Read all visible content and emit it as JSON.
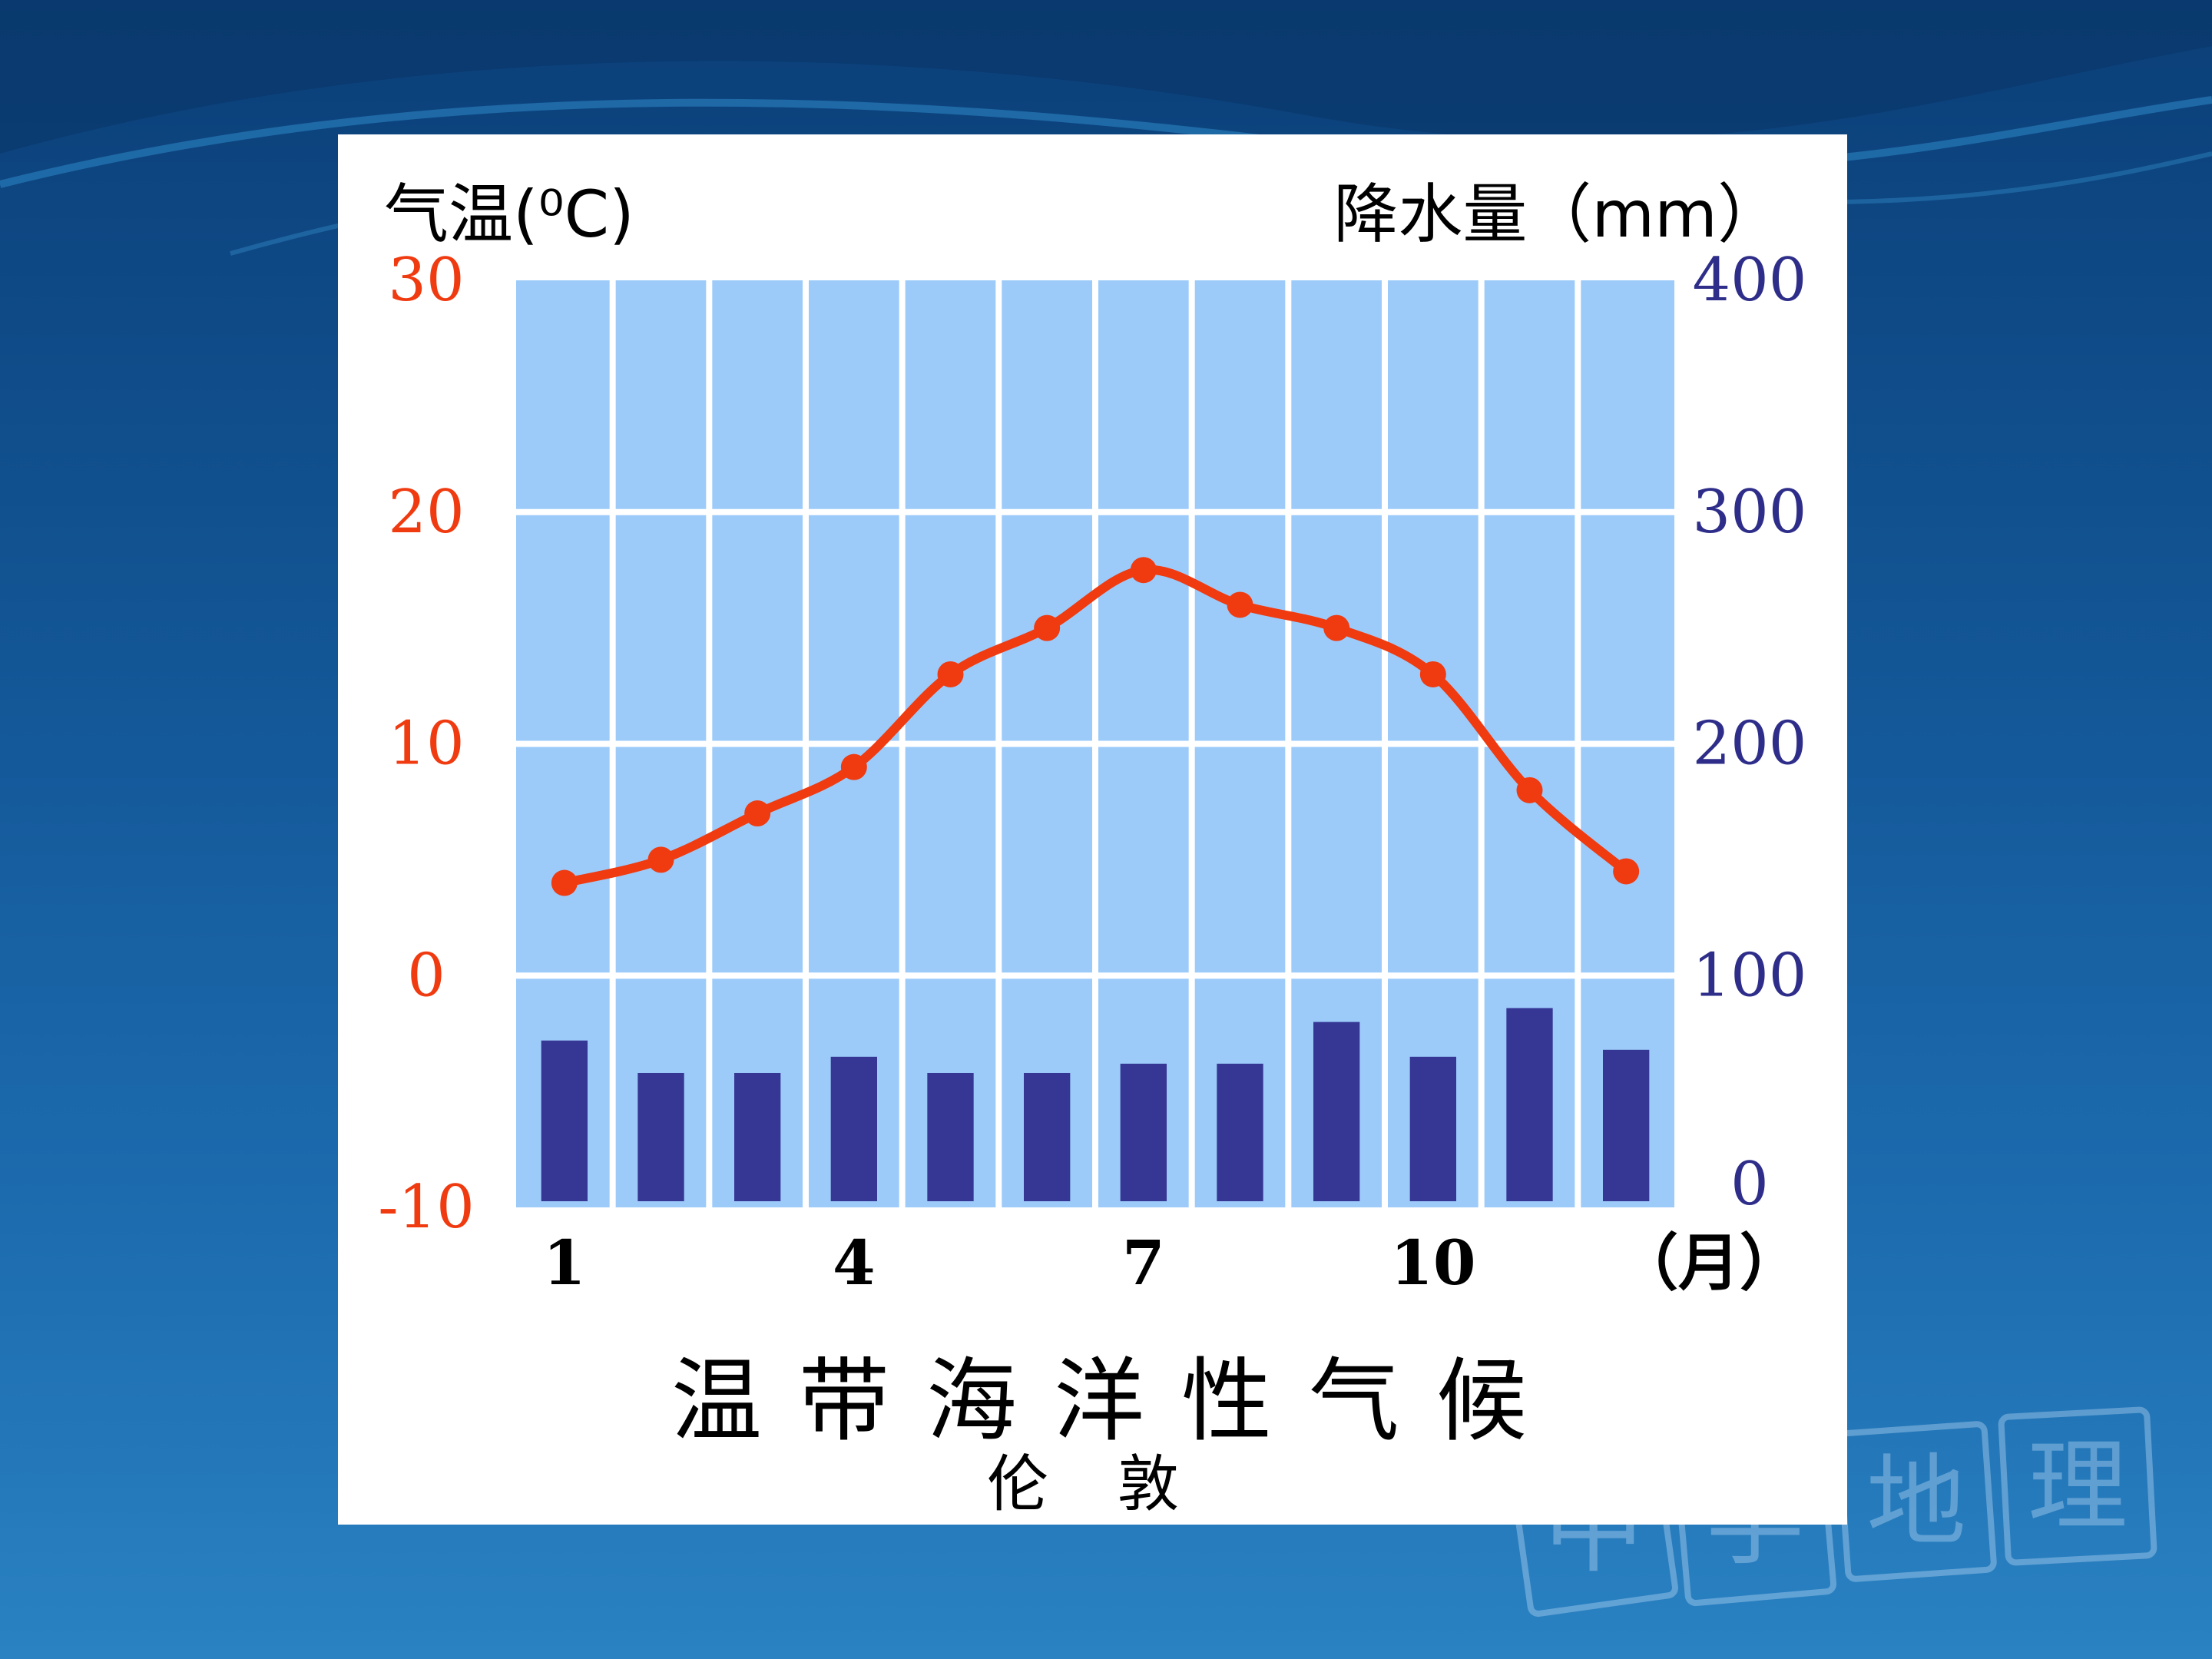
{
  "colors": {
    "temperature": "#f03a10",
    "precipitation_bar": "#363694",
    "precipitation_axis": "#2e2e8a",
    "plot_background": "#9ccbfa",
    "grid": "#ffffff"
  },
  "watermark": [
    "中",
    "学",
    "地",
    "理"
  ],
  "chart_data": {
    "type": "bar+line",
    "title": "温带海洋性气候",
    "subtitle": "伦敦",
    "x_label": "（月）",
    "x_tick_labels": [
      {
        "month": 1,
        "label": "1"
      },
      {
        "month": 4,
        "label": "4"
      },
      {
        "month": 7,
        "label": "7"
      },
      {
        "month": 10,
        "label": "10"
      }
    ],
    "months": [
      1,
      2,
      3,
      4,
      5,
      6,
      7,
      8,
      9,
      10,
      11,
      12
    ],
    "temperature": {
      "axis_label": "气温",
      "unit_label": "(⁰C)",
      "ylim": [
        -10,
        30
      ],
      "ticks": [
        "30",
        "20",
        "10",
        "0",
        "-10"
      ],
      "values": [
        4,
        5,
        7,
        9,
        13,
        15,
        17.5,
        16,
        15,
        13,
        8,
        4.5
      ]
    },
    "precipitation": {
      "axis_label": "降水量",
      "unit_label": "（mm）",
      "ylim": [
        0,
        400
      ],
      "ticks": [
        "400",
        "300",
        "200",
        "100",
        "0"
      ],
      "values": [
        72,
        58,
        58,
        65,
        58,
        58,
        62,
        62,
        80,
        65,
        86,
        68
      ]
    },
    "grid": true
  }
}
